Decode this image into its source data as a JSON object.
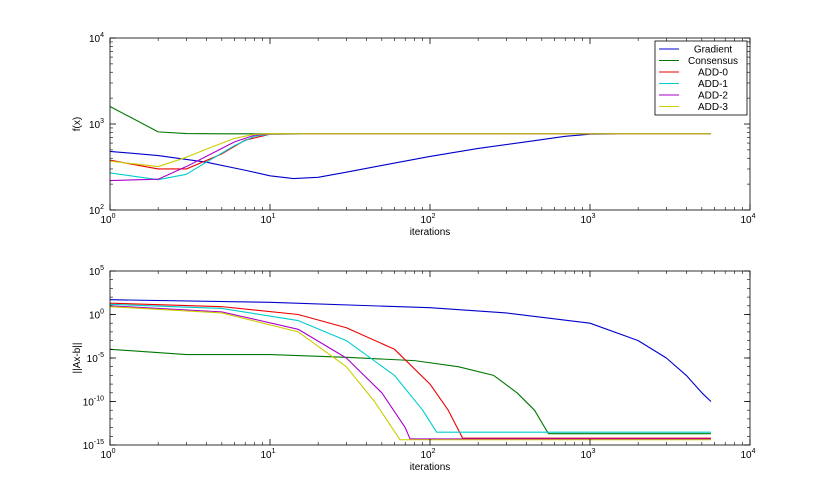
{
  "chart_data": [
    {
      "type": "line",
      "xscale": "log",
      "yscale": "log",
      "xlabel": "iterations",
      "ylabel": "f(x)",
      "xlim": [
        1,
        10000
      ],
      "ylim": [
        100,
        10000
      ],
      "x_ticks": [
        {
          "base": "10",
          "exp": "0",
          "v": 1
        },
        {
          "base": "10",
          "exp": "1",
          "v": 10
        },
        {
          "base": "10",
          "exp": "2",
          "v": 100
        },
        {
          "base": "10",
          "exp": "3",
          "v": 1000
        },
        {
          "base": "10",
          "exp": "4",
          "v": 10000
        }
      ],
      "y_ticks": [
        {
          "base": "10",
          "exp": "2",
          "v": 100
        },
        {
          "base": "10",
          "exp": "3",
          "v": 1000
        },
        {
          "base": "10",
          "exp": "4",
          "v": 10000
        }
      ],
      "legend": {
        "position": "top-right"
      },
      "grid": false,
      "series": [
        {
          "name": "Gradient",
          "color": "#0000cc",
          "points": [
            [
              1,
              480
            ],
            [
              2,
              430
            ],
            [
              4,
              360
            ],
            [
              7,
              290
            ],
            [
              10,
              250
            ],
            [
              14,
              232
            ],
            [
              20,
              240
            ],
            [
              30,
              275
            ],
            [
              50,
              330
            ],
            [
              100,
              420
            ],
            [
              200,
              520
            ],
            [
              400,
              620
            ],
            [
              700,
              720
            ],
            [
              1000,
              760
            ],
            [
              2000,
              768
            ],
            [
              5700,
              768
            ]
          ]
        },
        {
          "name": "Consensus",
          "color": "#007700",
          "points": [
            [
              1,
              1600
            ],
            [
              2,
              810
            ],
            [
              3,
              775
            ],
            [
              5,
              768
            ],
            [
              10,
              768
            ],
            [
              100,
              768
            ],
            [
              1000,
              768
            ],
            [
              5700,
              768
            ]
          ]
        },
        {
          "name": "ADD-0",
          "color": "#ee0000",
          "points": [
            [
              1,
              380
            ],
            [
              2,
              300
            ],
            [
              3,
              300
            ],
            [
              5,
              450
            ],
            [
              7,
              650
            ],
            [
              10,
              760
            ],
            [
              20,
              768
            ],
            [
              5700,
              768
            ]
          ]
        },
        {
          "name": "ADD-1",
          "color": "#00cccc",
          "points": [
            [
              1,
              270
            ],
            [
              2,
              225
            ],
            [
              3,
              260
            ],
            [
              4,
              360
            ],
            [
              6,
              560
            ],
            [
              8,
              720
            ],
            [
              10,
              760
            ],
            [
              20,
              768
            ],
            [
              5700,
              768
            ]
          ]
        },
        {
          "name": "ADD-2",
          "color": "#aa00cc",
          "points": [
            [
              1,
              220
            ],
            [
              2,
              228
            ],
            [
              3,
              320
            ],
            [
              4,
              420
            ],
            [
              6,
              620
            ],
            [
              8,
              740
            ],
            [
              10,
              765
            ],
            [
              20,
              768
            ],
            [
              5700,
              768
            ]
          ]
        },
        {
          "name": "ADD-3",
          "color": "#cccc00",
          "points": [
            [
              1,
              370
            ],
            [
              2,
              320
            ],
            [
              3,
              410
            ],
            [
              4,
              510
            ],
            [
              6,
              680
            ],
            [
              8,
              760
            ],
            [
              10,
              768
            ],
            [
              20,
              768
            ],
            [
              5700,
              768
            ]
          ]
        }
      ]
    },
    {
      "type": "line",
      "xscale": "log",
      "yscale": "log",
      "xlabel": "iterations",
      "ylabel": "||Ax-b||",
      "xlim": [
        1,
        10000
      ],
      "ylim": [
        1e-15,
        100000
      ],
      "x_ticks": [
        {
          "base": "10",
          "exp": "0",
          "v": 1
        },
        {
          "base": "10",
          "exp": "1",
          "v": 10
        },
        {
          "base": "10",
          "exp": "2",
          "v": 100
        },
        {
          "base": "10",
          "exp": "3",
          "v": 1000
        },
        {
          "base": "10",
          "exp": "4",
          "v": 10000
        }
      ],
      "y_ticks": [
        {
          "base": "10",
          "exp": "-15",
          "v": 1e-15
        },
        {
          "base": "10",
          "exp": "-10",
          "v": 1e-10
        },
        {
          "base": "10",
          "exp": "-5",
          "v": 1e-05
        },
        {
          "base": "10",
          "exp": "0",
          "v": 1
        },
        {
          "base": "10",
          "exp": "5",
          "v": 100000
        }
      ],
      "grid": false,
      "series": [
        {
          "name": "Gradient",
          "color": "#0000cc",
          "points": [
            [
              1,
              50
            ],
            [
              10,
              25
            ],
            [
              100,
              6
            ],
            [
              300,
              1.5
            ],
            [
              1000,
              0.1
            ],
            [
              2000,
              0.001
            ],
            [
              3000,
              1e-05
            ],
            [
              4000,
              1e-07
            ],
            [
              5000,
              1e-09
            ],
            [
              5700,
              1e-10
            ]
          ]
        },
        {
          "name": "Consensus",
          "color": "#007700",
          "points": [
            [
              1,
              0.0001
            ],
            [
              3,
              2.5e-05
            ],
            [
              10,
              2.5e-05
            ],
            [
              30,
              1.2e-05
            ],
            [
              80,
              5e-06
            ],
            [
              150,
              1e-06
            ],
            [
              250,
              1e-07
            ],
            [
              350,
              1e-09
            ],
            [
              450,
              1e-11
            ],
            [
              550,
              2e-14
            ],
            [
              600,
              2e-14
            ],
            [
              5700,
              2e-14
            ]
          ]
        },
        {
          "name": "ADD-0",
          "color": "#ee0000",
          "points": [
            [
              1,
              20
            ],
            [
              5,
              8
            ],
            [
              15,
              1
            ],
            [
              30,
              0.03
            ],
            [
              60,
              0.0001
            ],
            [
              100,
              1e-08
            ],
            [
              130,
              1e-11
            ],
            [
              160,
              6e-15
            ],
            [
              5700,
              6e-15
            ]
          ]
        },
        {
          "name": "ADD-1",
          "color": "#00cccc",
          "points": [
            [
              1,
              15
            ],
            [
              5,
              5
            ],
            [
              15,
              0.2
            ],
            [
              30,
              0.001
            ],
            [
              60,
              1e-07
            ],
            [
              90,
              1e-11
            ],
            [
              110,
              3e-14
            ],
            [
              5700,
              3e-14
            ]
          ]
        },
        {
          "name": "ADD-2",
          "color": "#aa00cc",
          "points": [
            [
              1,
              10
            ],
            [
              5,
              2
            ],
            [
              15,
              0.02
            ],
            [
              30,
              1e-05
            ],
            [
              50,
              1e-09
            ],
            [
              70,
              1e-13
            ],
            [
              75,
              5e-15
            ],
            [
              5700,
              5e-15
            ]
          ]
        },
        {
          "name": "ADD-3",
          "color": "#cccc00",
          "points": [
            [
              1,
              8
            ],
            [
              5,
              1.5
            ],
            [
              15,
              0.01
            ],
            [
              30,
              1e-06
            ],
            [
              45,
              1e-10
            ],
            [
              65,
              4e-15
            ],
            [
              5700,
              4e-15
            ]
          ]
        }
      ]
    }
  ]
}
